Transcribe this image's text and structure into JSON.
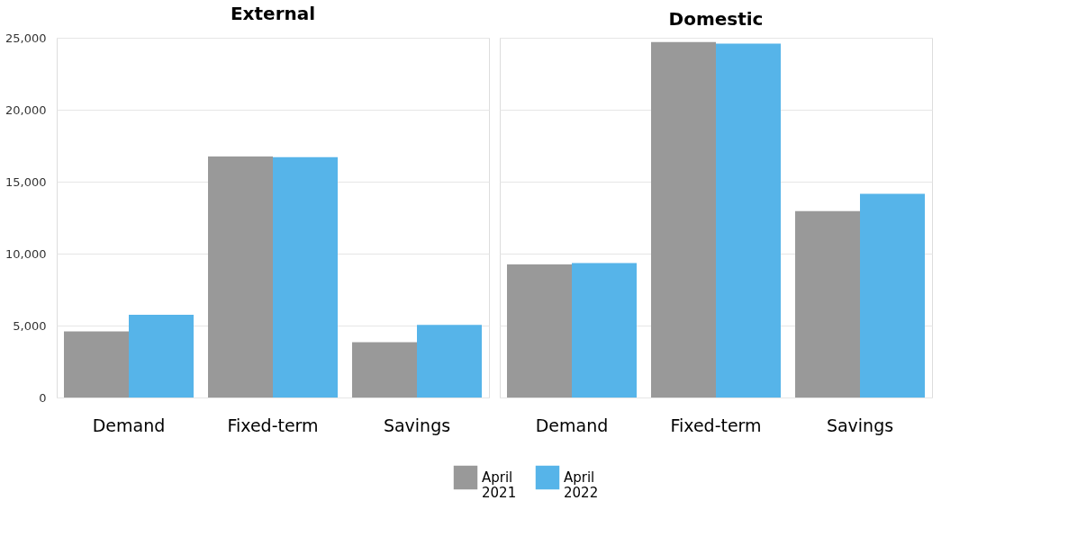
{
  "chart_data": [
    {
      "type": "bar",
      "title": "External",
      "categories": [
        "Demand",
        "Fixed-term",
        "Savings"
      ],
      "series": [
        {
          "name": "April 2021",
          "color": "#999999",
          "values": [
            4600,
            16750,
            3850
          ]
        },
        {
          "name": "April 2022",
          "color": "#56b4e9",
          "values": [
            5750,
            16700,
            5050
          ]
        }
      ],
      "ylim": [
        0,
        25000
      ],
      "yticks": [
        {
          "value": 0,
          "label": "0"
        },
        {
          "value": 5000,
          "label": "5,000"
        },
        {
          "value": 10000,
          "label": "10,000"
        },
        {
          "value": 15000,
          "label": "15,000"
        },
        {
          "value": 20000,
          "label": "20,000"
        },
        {
          "value": 25000,
          "label": "25,000"
        }
      ],
      "grid": "y",
      "legend": "bottom"
    },
    {
      "type": "bar",
      "title": "Domestic",
      "categories": [
        "Demand",
        "Fixed-term",
        "Savings"
      ],
      "series": [
        {
          "name": "April 2021",
          "color": "#999999",
          "values": [
            9250,
            24700,
            12950
          ]
        },
        {
          "name": "April 2022",
          "color": "#56b4e9",
          "values": [
            9350,
            24600,
            14150
          ]
        }
      ],
      "ylim": [
        0,
        25000
      ],
      "yticks": [
        {
          "value": 0,
          "label": null
        },
        {
          "value": 5000,
          "label": null
        },
        {
          "value": 10000,
          "label": null
        },
        {
          "value": 15000,
          "label": null
        },
        {
          "value": 20000,
          "label": null
        },
        {
          "value": 25000,
          "label": null
        }
      ],
      "grid": "y",
      "legend": "bottom",
      "tick_labels": "x"
    }
  ]
}
